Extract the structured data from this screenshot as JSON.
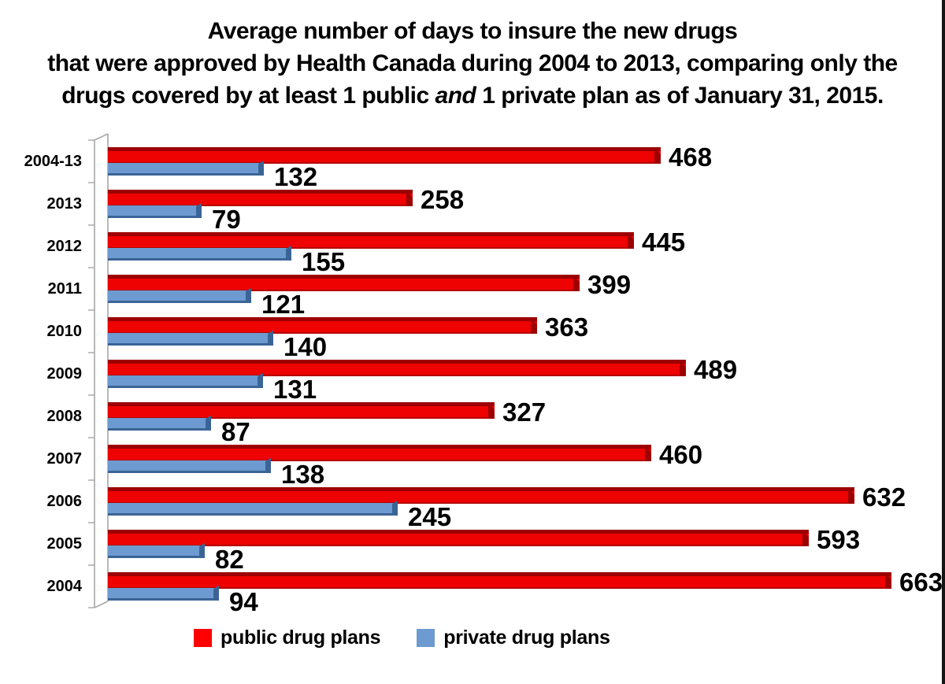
{
  "title": {
    "line1": "Average number of days to insure the new drugs",
    "line2": "that were approved by Health Canada during 2004 to 2013, comparing only the",
    "line3_pre": "drugs covered by at least 1 public ",
    "line3_italic": "and",
    "line3_post": " 1 private plan as of January 31, 2015."
  },
  "legend": {
    "items": [
      {
        "label": "public drug plans",
        "color": "#ff0000"
      },
      {
        "label": "private drug plans",
        "color": "#6d9bd1"
      }
    ]
  },
  "chart_data": {
    "type": "bar",
    "orientation": "horizontal",
    "title": "Average number of days to insure the new drugs that were approved by Health Canada during 2004 to 2013, comparing only the drugs covered by at least 1 public and 1 private plan as of January 31, 2015.",
    "categories": [
      "2004-13",
      "2013",
      "2012",
      "2011",
      "2010",
      "2009",
      "2008",
      "2007",
      "2006",
      "2005",
      "2004"
    ],
    "series": [
      {
        "name": "public drug plans",
        "color": "#ee0202",
        "edge_color": "#9d0000",
        "values": [
          468,
          258,
          445,
          399,
          363,
          489,
          327,
          460,
          632,
          593,
          663
        ]
      },
      {
        "name": "private drug plans",
        "color": "#6d9bd1",
        "edge_color": "#3b6496",
        "values": [
          132,
          79,
          155,
          121,
          140,
          131,
          87,
          138,
          245,
          82,
          94
        ]
      }
    ],
    "xlim": [
      0,
      700
    ],
    "value_labels": true,
    "grid": false,
    "legend_position": "bottom",
    "axis_style": "3d",
    "axis_color": "#a6a6a6"
  }
}
